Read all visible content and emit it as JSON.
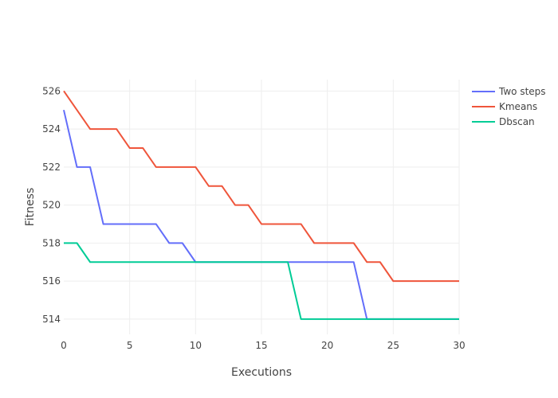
{
  "chart_data": {
    "type": "line",
    "xlabel": "Executions",
    "ylabel": "Fitness",
    "xlim": [
      0,
      30
    ],
    "ylim": [
      513.2,
      526.6
    ],
    "x_ticks": [
      0,
      5,
      10,
      15,
      20,
      25,
      30
    ],
    "y_ticks": [
      514,
      516,
      518,
      520,
      522,
      524,
      526
    ],
    "grid": true,
    "legend": "top-right",
    "x": [
      0,
      1,
      2,
      3,
      4,
      5,
      6,
      7,
      8,
      9,
      10,
      11,
      12,
      13,
      14,
      15,
      16,
      17,
      18,
      19,
      20,
      21,
      22,
      23,
      24,
      25,
      26,
      27,
      28,
      29,
      30
    ],
    "series": [
      {
        "name": "Two steps",
        "color": "#636efa",
        "values": [
          525,
          522,
          522,
          519,
          519,
          519,
          519,
          519,
          518,
          518,
          517,
          517,
          517,
          517,
          517,
          517,
          517,
          517,
          517,
          517,
          517,
          517,
          517,
          514,
          514,
          514,
          514,
          514,
          514,
          514,
          514
        ]
      },
      {
        "name": "Kmeans",
        "color": "#ef553b",
        "values": [
          526,
          525,
          524,
          524,
          524,
          523,
          523,
          522,
          522,
          522,
          522,
          521,
          521,
          520,
          520,
          519,
          519,
          519,
          519,
          518,
          518,
          518,
          518,
          517,
          517,
          516,
          516,
          516,
          516,
          516,
          516
        ]
      },
      {
        "name": "Dbscan",
        "color": "#00cc96",
        "values": [
          518,
          518,
          517,
          517,
          517,
          517,
          517,
          517,
          517,
          517,
          517,
          517,
          517,
          517,
          517,
          517,
          517,
          517,
          514,
          514,
          514,
          514,
          514,
          514,
          514,
          514,
          514,
          514,
          514,
          514,
          514
        ]
      }
    ]
  }
}
